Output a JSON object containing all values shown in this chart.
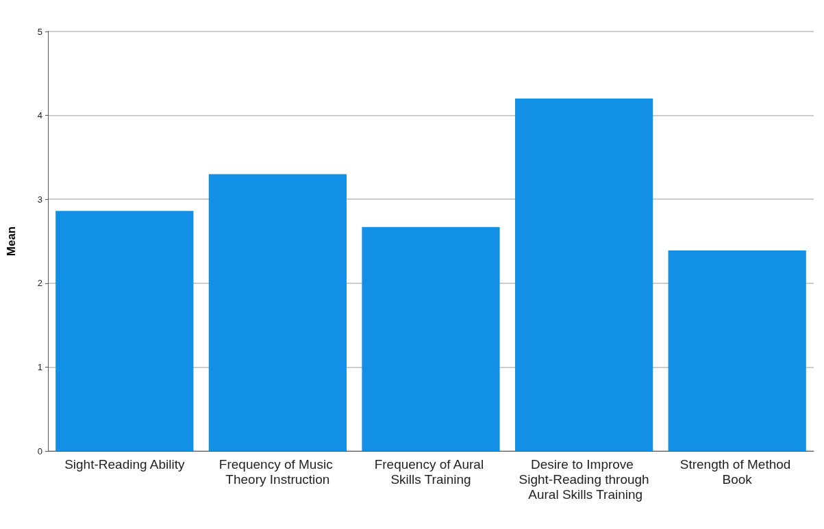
{
  "chart_data": {
    "type": "bar",
    "ylabel": "Mean",
    "categories": [
      "Sight-Reading Ability",
      "Frequency of Music Theory Instruction",
      "Frequency of Aural Skills Training",
      "Desire to Improve Sight-Reading through Aural Skills Training",
      "Strength of Method Book"
    ],
    "values": [
      2.86,
      3.3,
      2.67,
      4.2,
      2.39
    ],
    "color": "#1290e6",
    "ylim": [
      0,
      5
    ],
    "yticks": [
      0,
      1,
      2,
      3,
      4,
      5
    ],
    "grid": "y"
  }
}
